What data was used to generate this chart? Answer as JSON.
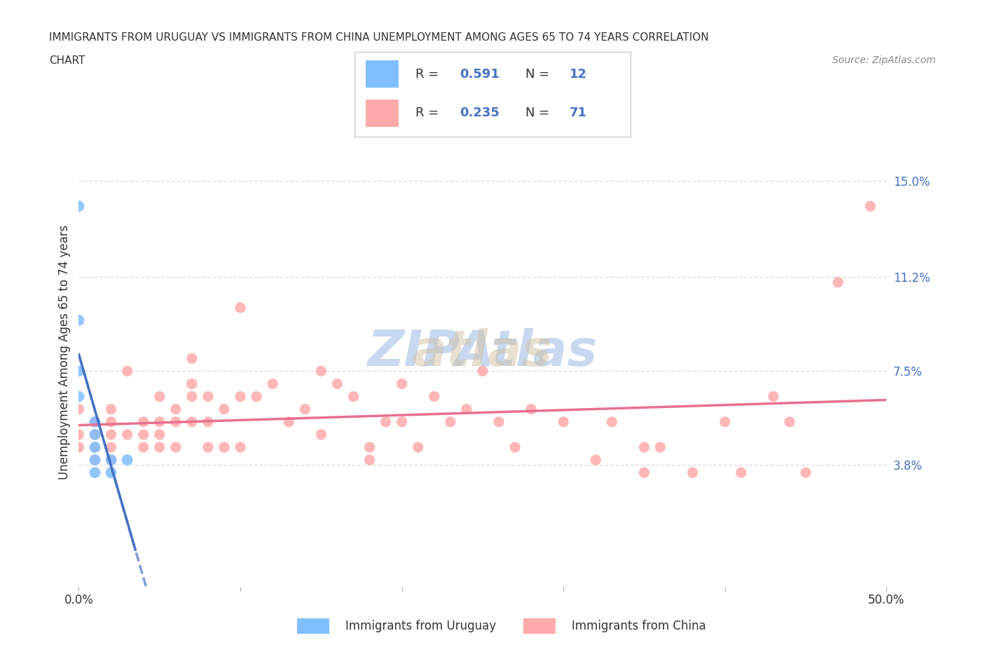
{
  "title_line1": "IMMIGRANTS FROM URUGUAY VS IMMIGRANTS FROM CHINA UNEMPLOYMENT AMONG AGES 65 TO 74 YEARS CORRELATION",
  "title_line2": "CHART",
  "source_text": "Source: ZipAtlas.com",
  "xlabel": "",
  "ylabel": "Unemployment Among Ages 65 to 74 years",
  "xlim": [
    0.0,
    0.5
  ],
  "ylim": [
    -0.01,
    0.175
  ],
  "xticks": [
    0.0,
    0.1,
    0.2,
    0.3,
    0.4,
    0.5
  ],
  "xticklabels": [
    "0.0%",
    "",
    "",
    "",
    "",
    "50.0%"
  ],
  "yticks_right": [
    0.038,
    0.075,
    0.112,
    0.15
  ],
  "ytick_labels_right": [
    "3.8%",
    "7.5%",
    "11.2%",
    "15.0%"
  ],
  "R_uruguay": 0.591,
  "N_uruguay": 12,
  "R_china": 0.235,
  "N_china": 71,
  "color_uruguay": "#7fbfff",
  "color_china": "#ffaaaa",
  "color_text_blue": "#4472c4",
  "watermark": "ZIPAtlas",
  "watermark_color": "#c8d8f0",
  "uruguay_x": [
    0.0,
    0.0,
    0.0,
    0.0,
    0.01,
    0.01,
    0.01,
    0.01,
    0.01,
    0.02,
    0.02,
    0.03
  ],
  "uruguay_y": [
    0.14,
    0.095,
    0.075,
    0.065,
    0.055,
    0.05,
    0.045,
    0.04,
    0.035,
    0.035,
    0.04,
    0.04
  ],
  "china_x": [
    0.0,
    0.0,
    0.0,
    0.01,
    0.01,
    0.01,
    0.01,
    0.02,
    0.02,
    0.02,
    0.02,
    0.02,
    0.03,
    0.03,
    0.04,
    0.04,
    0.04,
    0.05,
    0.05,
    0.05,
    0.05,
    0.06,
    0.06,
    0.06,
    0.07,
    0.07,
    0.07,
    0.07,
    0.08,
    0.08,
    0.08,
    0.09,
    0.09,
    0.1,
    0.1,
    0.1,
    0.11,
    0.12,
    0.13,
    0.14,
    0.15,
    0.15,
    0.16,
    0.17,
    0.18,
    0.18,
    0.19,
    0.2,
    0.2,
    0.21,
    0.22,
    0.23,
    0.24,
    0.25,
    0.26,
    0.27,
    0.28,
    0.3,
    0.32,
    0.33,
    0.35,
    0.35,
    0.36,
    0.38,
    0.4,
    0.41,
    0.43,
    0.44,
    0.45,
    0.47,
    0.49
  ],
  "china_y": [
    0.06,
    0.05,
    0.045,
    0.055,
    0.05,
    0.045,
    0.04,
    0.06,
    0.055,
    0.05,
    0.045,
    0.04,
    0.075,
    0.05,
    0.055,
    0.05,
    0.045,
    0.065,
    0.055,
    0.05,
    0.045,
    0.06,
    0.055,
    0.045,
    0.08,
    0.07,
    0.065,
    0.055,
    0.065,
    0.055,
    0.045,
    0.06,
    0.045,
    0.1,
    0.065,
    0.045,
    0.065,
    0.07,
    0.055,
    0.06,
    0.075,
    0.05,
    0.07,
    0.065,
    0.045,
    0.04,
    0.055,
    0.07,
    0.055,
    0.045,
    0.065,
    0.055,
    0.06,
    0.075,
    0.055,
    0.045,
    0.06,
    0.055,
    0.04,
    0.055,
    0.045,
    0.035,
    0.045,
    0.035,
    0.055,
    0.035,
    0.065,
    0.055,
    0.035,
    0.11,
    0.14
  ],
  "legend_label_uruguay": "Immigrants from Uruguay",
  "legend_label_china": "Immigrants from China",
  "fig_bg_color": "#ffffff",
  "grid_color": "#dddddd"
}
